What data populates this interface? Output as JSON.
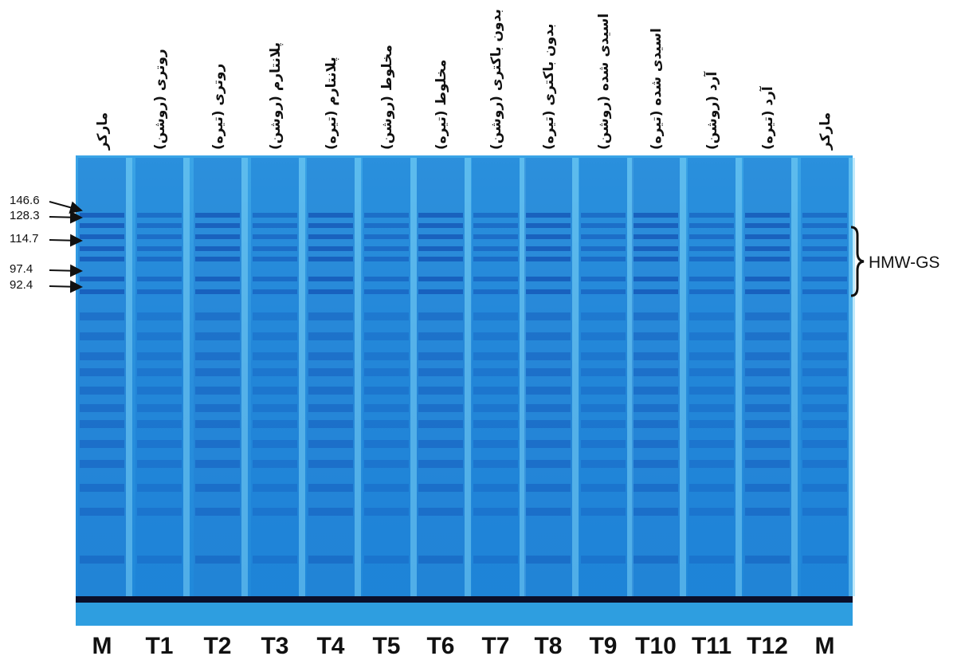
{
  "markers": [
    "146.6",
    "128.3",
    "114.7",
    "97.4",
    "92.4"
  ],
  "bracket_label": "HMW-GS",
  "lanes": [
    {
      "top": "مارکر",
      "bottom": "M"
    },
    {
      "top": "روتری (روشن)",
      "bottom": "T1"
    },
    {
      "top": "روتری (تیره)",
      "bottom": "T2"
    },
    {
      "top": "پلانتارم (روشن)",
      "bottom": "T3"
    },
    {
      "top": "پلانتارم (تیره)",
      "bottom": "T4"
    },
    {
      "top": "مخلوط (روشن)",
      "bottom": "T5"
    },
    {
      "top": "مخلوط (تیره)",
      "bottom": "T6"
    },
    {
      "top": "بدون باکتری (روشن)",
      "bottom": "T7"
    },
    {
      "top": "بدون باکتری (تیره)",
      "bottom": "T8"
    },
    {
      "top": "اسیدی شده (روشن)",
      "bottom": "T9"
    },
    {
      "top": "اسیدی شده (تیره)",
      "bottom": "T10"
    },
    {
      "top": "آرد (روشن)",
      "bottom": "T11"
    },
    {
      "top": "آرد (تیره)",
      "bottom": "T12"
    },
    {
      "top": "مارکر",
      "bottom": "M"
    }
  ]
}
